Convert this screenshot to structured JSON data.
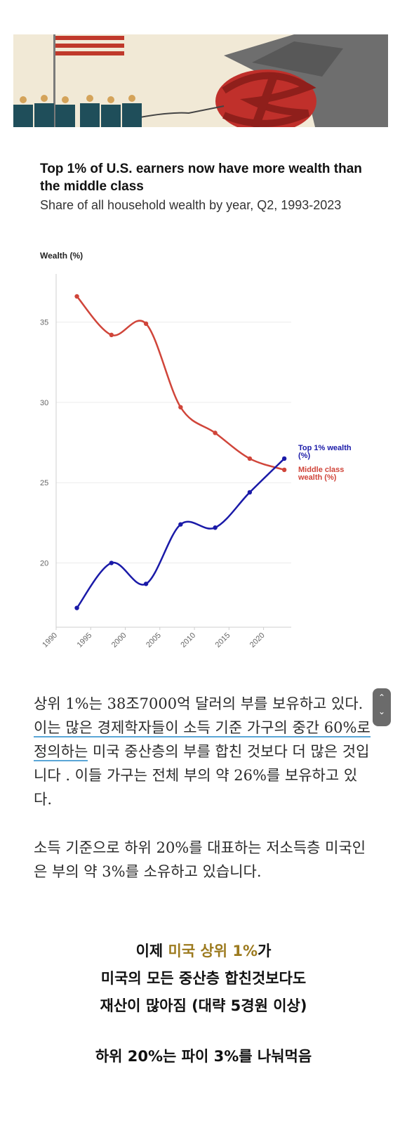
{
  "chart_data": {
    "type": "line",
    "title": "Top 1% of U.S. earners now have more wealth than the middle class",
    "subtitle": "Share of all household wealth by year, Q2, 1993-2023",
    "ylabel": "Wealth (%)",
    "xlabel": "",
    "xlim": [
      1990,
      2024
    ],
    "ylim": [
      16,
      38
    ],
    "xticks": [
      1990,
      1995,
      2000,
      2005,
      2010,
      2015,
      2020
    ],
    "yticks": [
      20,
      25,
      30,
      35
    ],
    "grid": true,
    "legend": "direct labels at right end of lines",
    "series": [
      {
        "name": "Middle class wealth (%)",
        "color": "#d0453a",
        "x": [
          1993,
          1998,
          2003,
          2008,
          2013,
          2018,
          2023
        ],
        "y": [
          36.6,
          34.2,
          34.9,
          29.7,
          28.1,
          26.5,
          25.8
        ]
      },
      {
        "name": "Top 1% wealth (%)",
        "color": "#1a1aa8",
        "x": [
          1993,
          1998,
          2003,
          2008,
          2013,
          2018,
          2023
        ],
        "y": [
          17.2,
          20.0,
          18.7,
          22.4,
          22.2,
          24.4,
          26.5
        ]
      }
    ]
  },
  "article": {
    "p1_a": "상위 1%는 38조7000억 달러의 부를 보유하고 있다. ",
    "p1_highlight": "이는 많은 경제학자들이 소득 기준 가구의 중간 60%로 정의하는",
    "p1_b": " 미국 중산층의 부를 합친 것보다 더 많은 것입니다 . 이들 가구는 전체 부의 약 26%를 보유하고 있다.",
    "p2": "소득 기준으로 하위 20%를 대표하는 저소득층 미국인은 부의 약 3%를 소유하고 있습니다."
  },
  "caption": {
    "line1_a": "이제 ",
    "line1_gold": "미국 상위 1%",
    "line1_b": "가",
    "line2": "미국의 모든 중산층 합친것보다도",
    "line3": "재산이 많아짐 (대략 5경원 이상)",
    "line4": "하위 20%는 파이 3%를 나눠먹음"
  }
}
